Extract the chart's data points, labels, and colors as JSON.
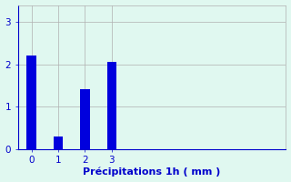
{
  "categories": [
    0,
    1,
    2,
    3
  ],
  "values": [
    2.2,
    0.3,
    1.4,
    2.05
  ],
  "bar_color": "#0000dd",
  "bar_width": 0.35,
  "background_color": "#e0f8f0",
  "xlabel": "Précipitations 1h ( mm )",
  "ylabel": "",
  "ylim": [
    0,
    3.4
  ],
  "xlim": [
    -0.5,
    9.5
  ],
  "yticks": [
    0,
    1,
    2,
    3
  ],
  "xticks": [
    0,
    1,
    2,
    3
  ],
  "grid_color": "#b0b0b0",
  "xlabel_color": "#0000cc",
  "tick_color": "#0000cc",
  "xlabel_fontsize": 8,
  "tick_fontsize": 7.5
}
